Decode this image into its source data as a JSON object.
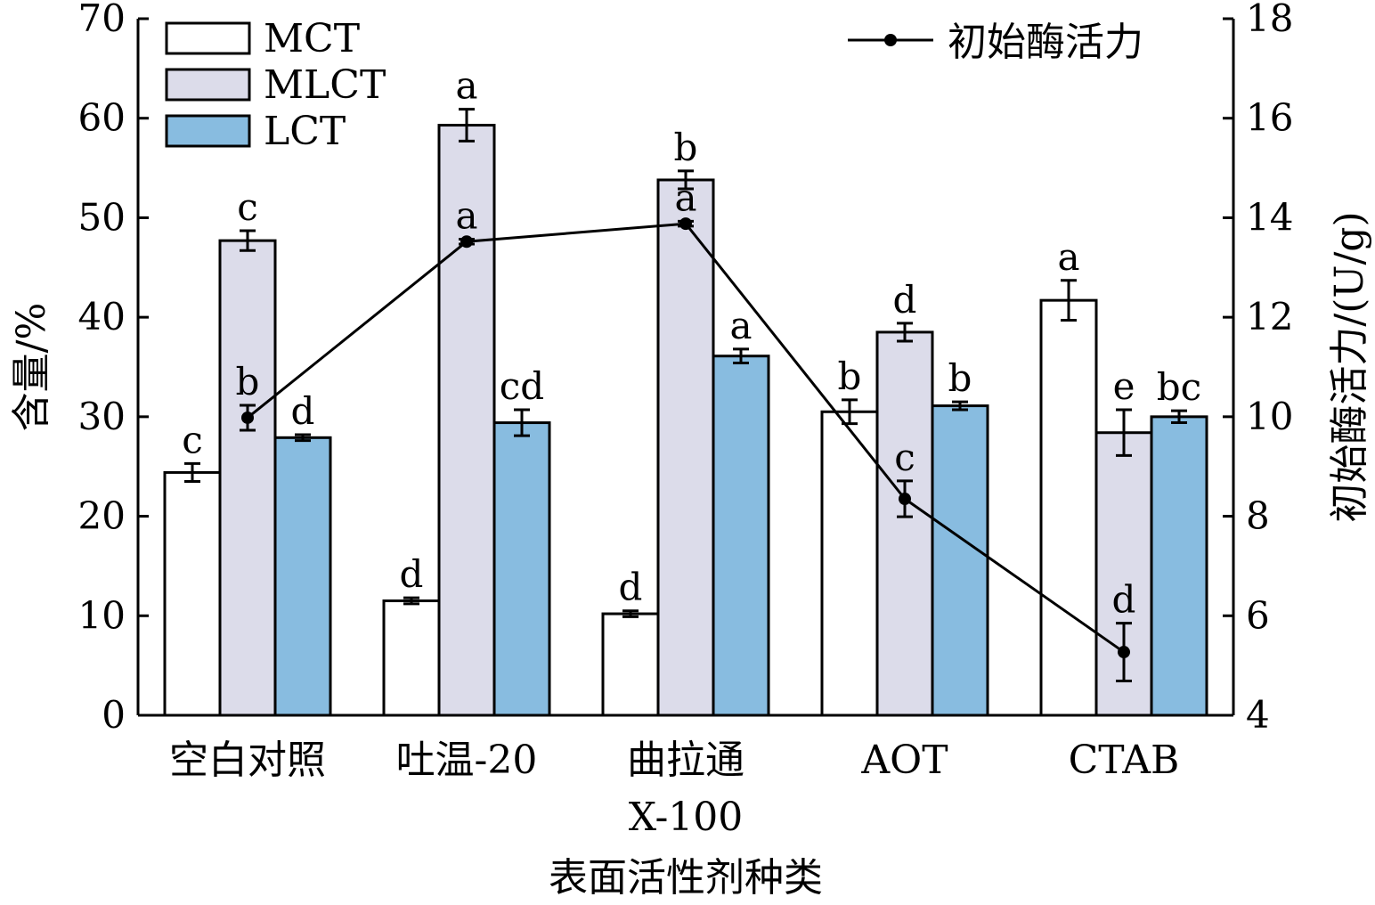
{
  "chart_data": {
    "type": "bar+line",
    "xlabel": "表面活性剂种类",
    "ylabel": "含量/%",
    "y2label": "初始酶活力/(U/g)",
    "ylim": [
      0,
      70
    ],
    "y2lim": [
      4,
      18
    ],
    "yticks": [
      0,
      10,
      20,
      30,
      40,
      50,
      60,
      70
    ],
    "y2ticks": [
      4,
      6,
      8,
      10,
      12,
      14,
      16,
      18
    ],
    "categories": [
      [
        "空白对照"
      ],
      [
        "吐温-20"
      ],
      [
        "曲拉通",
        "X-100"
      ],
      [
        "AOT"
      ],
      [
        "CTAB"
      ]
    ],
    "series": [
      {
        "name": "MCT",
        "color": "#ffffff",
        "values": [
          24.4,
          11.5,
          10.2,
          30.5,
          41.7
        ],
        "errors": [
          0.9,
          0.3,
          0.3,
          1.2,
          2.0
        ],
        "letters": [
          "c",
          "d",
          "d",
          "b",
          "a"
        ]
      },
      {
        "name": "MLCT",
        "color": "#dcdcea",
        "values": [
          47.7,
          59.3,
          53.8,
          38.5,
          28.4
        ],
        "errors": [
          1.0,
          1.6,
          0.9,
          0.9,
          2.3
        ],
        "letters": [
          "c",
          "a",
          "b",
          "d",
          "e"
        ]
      },
      {
        "name": "LCT",
        "color": "#88bce0",
        "values": [
          27.9,
          29.4,
          36.1,
          31.1,
          30.0
        ],
        "errors": [
          0.3,
          1.3,
          0.7,
          0.4,
          0.6
        ],
        "letters": [
          "d",
          "cd",
          "a",
          "b",
          "bc"
        ]
      }
    ],
    "line": {
      "name": "初始酶活力",
      "axis": "right",
      "values": [
        9.98,
        13.52,
        13.88,
        8.35,
        5.27
      ],
      "errors": [
        0.25,
        0.05,
        0.05,
        0.36,
        0.58
      ],
      "letters": [
        "b",
        "a",
        "a",
        "c",
        "d"
      ]
    },
    "legend": {
      "bars": "top-left",
      "line": "top-right"
    }
  }
}
